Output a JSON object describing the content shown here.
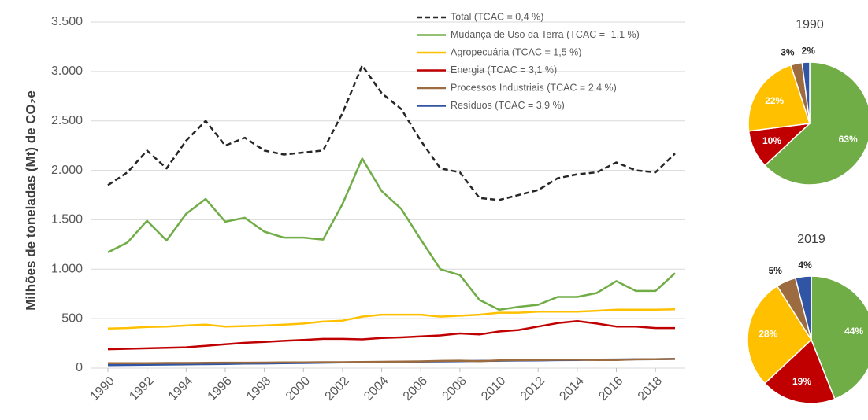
{
  "chart_data": [
    {
      "type": "line",
      "ylabel": "Milhões de toneladas (Mt) de CO₂e",
      "x": [
        1990,
        1991,
        1992,
        1993,
        1994,
        1995,
        1996,
        1997,
        1998,
        1999,
        2000,
        2001,
        2002,
        2003,
        2004,
        2005,
        2006,
        2007,
        2008,
        2009,
        2010,
        2011,
        2012,
        2013,
        2014,
        2015,
        2016,
        2017,
        2018,
        2019
      ],
      "xlim": [
        1990,
        2019
      ],
      "xticks": [
        1990,
        1992,
        1994,
        1996,
        1998,
        2000,
        2002,
        2004,
        2006,
        2008,
        2010,
        2012,
        2014,
        2016,
        2018
      ],
      "ylim": [
        0,
        3500
      ],
      "yticks": [
        0,
        500,
        {
          "value": 1000,
          "label": "1.000"
        },
        {
          "value": 1500,
          "label": "1.500"
        },
        {
          "value": 2000,
          "label": "2.000"
        },
        {
          "value": 2500,
          "label": "2.500"
        },
        {
          "value": 3000,
          "label": "3.000"
        },
        {
          "value": 3500,
          "label": "3.500"
        }
      ],
      "grid": true,
      "series": [
        {
          "name": "Total (TCAC = 0,4 %)",
          "color": "#262626",
          "dash": true,
          "values": [
            1850,
            1980,
            2200,
            2020,
            2300,
            2500,
            2250,
            2330,
            2200,
            2160,
            2180,
            2200,
            2580,
            3060,
            2780,
            2620,
            2300,
            2020,
            1980,
            1720,
            1700,
            1750,
            1800,
            1920,
            1960,
            1980,
            2080,
            2000,
            1980,
            2170
          ]
        },
        {
          "name": "Mudança de Uso da Terra (TCAC = -1,1 %)",
          "color": "#70ad47",
          "dash": false,
          "values": [
            1170,
            1270,
            1490,
            1290,
            1560,
            1710,
            1480,
            1520,
            1380,
            1320,
            1320,
            1300,
            1660,
            2120,
            1790,
            1610,
            1300,
            1000,
            940,
            690,
            590,
            620,
            640,
            720,
            720,
            760,
            880,
            780,
            780,
            960
          ]
        },
        {
          "name": "Agropecuária (TCAC = 1,5 %)",
          "color": "#ffc000",
          "dash": false,
          "values": [
            400,
            405,
            415,
            420,
            430,
            440,
            420,
            425,
            430,
            440,
            450,
            470,
            480,
            520,
            540,
            540,
            540,
            520,
            530,
            540,
            560,
            560,
            570,
            570,
            570,
            580,
            590,
            590,
            590,
            595
          ]
        },
        {
          "name": "Energia (TCAC = 3,1 %)",
          "color": "#c00000",
          "dash": false,
          "values": [
            190,
            195,
            200,
            205,
            210,
            225,
            240,
            255,
            265,
            275,
            285,
            295,
            295,
            290,
            305,
            310,
            320,
            330,
            350,
            340,
            370,
            385,
            420,
            455,
            475,
            450,
            420,
            420,
            405,
            405
          ]
        },
        {
          "name": "Processos Industriais (TCAC = 2,4 %)",
          "color": "#9c6b3f",
          "dash": false,
          "values": [
            50,
            50,
            50,
            52,
            52,
            53,
            55,
            55,
            56,
            57,
            58,
            60,
            60,
            62,
            64,
            66,
            68,
            72,
            75,
            70,
            78,
            80,
            82,
            84,
            84,
            82,
            82,
            88,
            90,
            92
          ]
        },
        {
          "name": "Resíduos (TCAC = 3,9 %)",
          "color": "#2f55a4",
          "dash": false,
          "values": [
            30,
            32,
            34,
            36,
            38,
            40,
            42,
            45,
            47,
            50,
            52,
            55,
            57,
            60,
            62,
            63,
            65,
            68,
            70,
            72,
            74,
            76,
            78,
            80,
            82,
            85,
            87,
            88,
            90,
            92
          ]
        }
      ]
    },
    {
      "type": "pie",
      "title": "1990",
      "values": [
        63,
        10,
        22,
        3,
        2
      ],
      "value_labels": [
        "63%",
        "10%",
        "22%",
        "3%",
        "2%"
      ],
      "colors": [
        "#70ad47",
        "#c00000",
        "#ffc000",
        "#9c6b3f",
        "#2f55a4"
      ]
    },
    {
      "type": "pie",
      "title": "2019",
      "values": [
        44,
        19,
        28,
        5,
        4
      ],
      "value_labels": [
        "44%",
        "19%",
        "28%",
        "5%",
        "4%"
      ],
      "colors": [
        "#70ad47",
        "#c00000",
        "#ffc000",
        "#9c6b3f",
        "#2f55a4"
      ]
    }
  ]
}
